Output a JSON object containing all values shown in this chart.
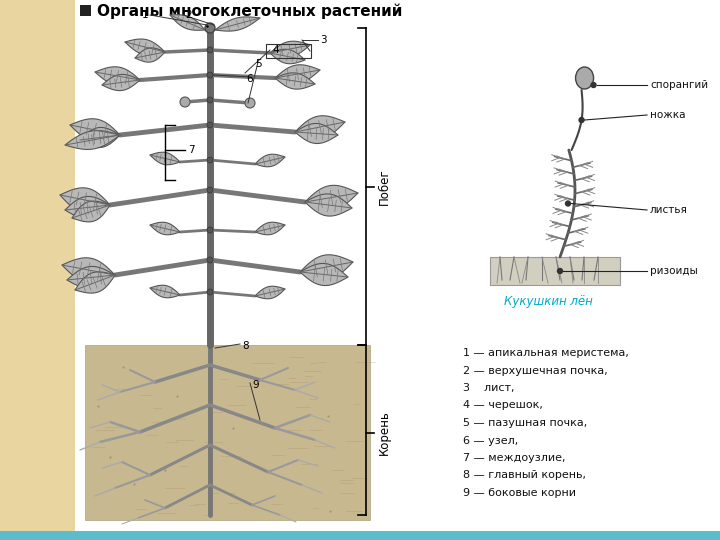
{
  "title": "Органы многоклеточных растений",
  "bg_color": "#ffffff",
  "left_panel_color": "#e8d5a0",
  "bottom_bar_color": "#5bbccc",
  "legend_lines": [
    "1 — апикальная меристема,",
    "2 — верхушечная почка,",
    "3    лист,",
    "4 — черешок,",
    "5 — пазушная почка,",
    "6 — узел,",
    "7 — междоузлие,",
    "8 — главный корень,",
    "9 — боковые корни"
  ],
  "pobeg_label": "Побег",
  "koren_label": "Корень",
  "moss_title": "Кукушкин лён",
  "moss_title_color": "#00aacc",
  "moss_labels": [
    [
      "спорангий",
      655,
      450
    ],
    [
      "ножка",
      655,
      390
    ],
    [
      "листья",
      655,
      320
    ],
    [
      "ризоиды",
      655,
      245
    ]
  ]
}
